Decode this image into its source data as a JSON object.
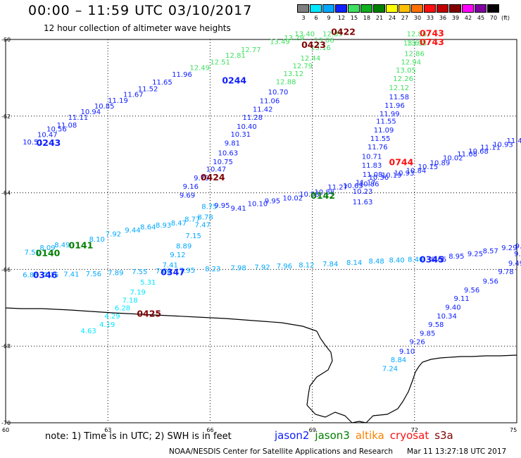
{
  "header": {
    "title": "00:00 – 11:59 UTC 03/10/2017",
    "subtitle": "12 hour collection of altimeter wave heights"
  },
  "scale": {
    "unit": "(ft)",
    "bins": [
      {
        "label": "3",
        "color": "#7f7f7f"
      },
      {
        "label": "6",
        "color": "#00e8ff"
      },
      {
        "label": "9",
        "color": "#00a8ff"
      },
      {
        "label": "12",
        "color": "#1020ff"
      },
      {
        "label": "15",
        "color": "#40e060"
      },
      {
        "label": "18",
        "color": "#10b020"
      },
      {
        "label": "21",
        "color": "#008000"
      },
      {
        "label": "24",
        "color": "#ffff00"
      },
      {
        "label": "27",
        "color": "#ffc000"
      },
      {
        "label": "30",
        "color": "#ff7000"
      },
      {
        "label": "33",
        "color": "#ff1010"
      },
      {
        "label": "36",
        "color": "#c00000"
      },
      {
        "label": "39",
        "color": "#800000"
      },
      {
        "label": "42",
        "color": "#ff00ff"
      },
      {
        "label": "45",
        "color": "#8000a0"
      },
      {
        "label": "70",
        "color": "#000000"
      }
    ]
  },
  "map": {
    "lat_ticks": [
      "-60",
      "-62",
      "-64",
      "-66",
      "-68",
      "-70"
    ],
    "lon_ticks": [
      "60",
      "63",
      "66",
      "69",
      "72",
      "75"
    ]
  },
  "tracks": [
    {
      "color": "#1020ff",
      "labels": [
        {
          "t": "10.51",
          "lon": 60.5,
          "lat": -62.74
        },
        {
          "t": "10.47",
          "lon": 60.93,
          "lat": -62.55
        },
        {
          "t": "10.56",
          "lon": 61.2,
          "lat": -62.4
        },
        {
          "t": "11.08",
          "lon": 61.5,
          "lat": -62.3
        },
        {
          "t": "11.11",
          "lon": 61.83,
          "lat": -62.1
        },
        {
          "t": "10.94",
          "lon": 62.2,
          "lat": -61.95
        },
        {
          "t": "10.85",
          "lon": 62.6,
          "lat": -61.8
        },
        {
          "t": "11.19",
          "lon": 63.0,
          "lat": -61.65
        },
        {
          "t": "11.67",
          "lon": 63.45,
          "lat": -61.5
        },
        {
          "t": "11.52",
          "lon": 63.88,
          "lat": -61.35
        },
        {
          "t": "11.65",
          "lon": 64.3,
          "lat": -61.18
        },
        {
          "t": "11.96",
          "lon": 64.88,
          "lat": -60.97
        }
      ]
    },
    {
      "color": "#40e060",
      "labels": [
        {
          "t": "12.49",
          "lon": 65.4,
          "lat": -60.8
        },
        {
          "t": "12.51",
          "lon": 66.0,
          "lat": -60.65
        },
        {
          "t": "12.81",
          "lon": 66.45,
          "lat": -60.48
        },
        {
          "t": "12.77",
          "lon": 66.9,
          "lat": -60.33
        },
        {
          "t": "13.49",
          "lon": 67.75,
          "lat": -60.12
        },
        {
          "t": "13.29",
          "lon": 68.17,
          "lat": -60.02
        },
        {
          "t": "13.40",
          "lon": 68.48,
          "lat": -59.92
        },
        {
          "t": "12.89",
          "lon": 69.3,
          "lat": -59.92
        },
        {
          "t": "13.06",
          "lon": 69.05,
          "lat": -60.08
        },
        {
          "t": "13.16",
          "lon": 68.95,
          "lat": -60.28
        },
        {
          "t": "12.44",
          "lon": 68.65,
          "lat": -60.55
        },
        {
          "t": "12.79",
          "lon": 68.42,
          "lat": -60.75
        },
        {
          "t": "13.12",
          "lon": 68.15,
          "lat": -60.96
        },
        {
          "t": "12.88",
          "lon": 67.93,
          "lat": -61.17
        },
        {
          "t": "12.86",
          "lon": 71.77,
          "lat": -59.92
        },
        {
          "t": "13.63",
          "lon": 71.67,
          "lat": -60.16
        },
        {
          "t": "13.93",
          "lon": 71.77,
          "lat": -60.16
        },
        {
          "t": "12.86",
          "lon": 71.7,
          "lat": -60.43
        },
        {
          "t": "12.94",
          "lon": 71.6,
          "lat": -60.65
        },
        {
          "t": "13.05",
          "lon": 71.45,
          "lat": -60.86
        },
        {
          "t": "12.26",
          "lon": 71.37,
          "lat": -61.08
        },
        {
          "t": "12.12",
          "lon": 71.25,
          "lat": -61.32
        }
      ]
    },
    {
      "color": "#1020ff",
      "labels": [
        {
          "t": "10.70",
          "lon": 67.7,
          "lat": -61.43
        },
        {
          "t": "11.06",
          "lon": 67.45,
          "lat": -61.66
        },
        {
          "t": "11.42",
          "lon": 67.25,
          "lat": -61.88
        },
        {
          "t": "11.28",
          "lon": 66.95,
          "lat": -62.1
        },
        {
          "t": "10.40",
          "lon": 66.78,
          "lat": -62.33
        },
        {
          "t": "10.31",
          "lon": 66.6,
          "lat": -62.54
        },
        {
          "t": "9.81",
          "lon": 66.42,
          "lat": -62.77
        },
        {
          "t": "10.63",
          "lon": 66.23,
          "lat": -63.02
        },
        {
          "t": "10.75",
          "lon": 66.08,
          "lat": -63.25
        },
        {
          "t": "10.47",
          "lon": 65.88,
          "lat": -63.45
        },
        {
          "t": "9.79",
          "lon": 65.52,
          "lat": -63.68
        },
        {
          "t": "9.16",
          "lon": 65.2,
          "lat": -63.9
        },
        {
          "t": "9.69",
          "lon": 65.1,
          "lat": -64.13
        },
        {
          "t": "11.58",
          "lon": 71.25,
          "lat": -61.56
        },
        {
          "t": "11.96",
          "lon": 71.12,
          "lat": -61.78
        },
        {
          "t": "11.99",
          "lon": 70.97,
          "lat": -62.0
        },
        {
          "t": "11.55",
          "lon": 70.87,
          "lat": -62.2
        },
        {
          "t": "11.09",
          "lon": 70.8,
          "lat": -62.43
        },
        {
          "t": "11.55",
          "lon": 70.7,
          "lat": -62.65
        },
        {
          "t": "11.76",
          "lon": 70.62,
          "lat": -62.87
        },
        {
          "t": "10.71",
          "lon": 70.45,
          "lat": -63.12
        },
        {
          "t": "11.83",
          "lon": 70.45,
          "lat": -63.35
        },
        {
          "t": "11.08",
          "lon": 70.47,
          "lat": -63.58
        },
        {
          "t": "10.86",
          "lon": 70.37,
          "lat": -63.83
        },
        {
          "t": "10.23",
          "lon": 70.18,
          "lat": -64.03
        },
        {
          "t": "11.63",
          "lon": 70.18,
          "lat": -64.3
        }
      ]
    },
    {
      "color": "#1020ff",
      "labels": [
        {
          "t": "9.95",
          "lon": 66.12,
          "lat": -64.39
        },
        {
          "t": "9.41",
          "lon": 66.6,
          "lat": -64.47
        },
        {
          "t": "10.10",
          "lon": 67.1,
          "lat": -64.35
        },
        {
          "t": "9.95",
          "lon": 67.6,
          "lat": -64.27
        },
        {
          "t": "10.02",
          "lon": 68.13,
          "lat": -64.2
        },
        {
          "t": "10.53",
          "lon": 68.62,
          "lat": -64.1
        },
        {
          "t": "10.88",
          "lon": 69.06,
          "lat": -64.04
        },
        {
          "t": "11.27",
          "lon": 69.45,
          "lat": -63.92
        },
        {
          "t": "10.65",
          "lon": 69.9,
          "lat": -63.88
        },
        {
          "t": "11.17",
          "lon": 70.27,
          "lat": -63.8
        },
        {
          "t": "10.36",
          "lon": 70.65,
          "lat": -63.66
        },
        {
          "t": "10.19",
          "lon": 71.03,
          "lat": -63.6
        },
        {
          "t": "10.93",
          "lon": 71.4,
          "lat": -63.55
        },
        {
          "t": "10.84",
          "lon": 71.75,
          "lat": -63.48
        },
        {
          "t": "10.15",
          "lon": 72.1,
          "lat": -63.38
        },
        {
          "t": "10.89",
          "lon": 72.45,
          "lat": -63.28
        },
        {
          "t": "10.02",
          "lon": 72.83,
          "lat": -63.15
        },
        {
          "t": "11.08",
          "lon": 73.25,
          "lat": -63.05
        },
        {
          "t": "10.68",
          "lon": 73.58,
          "lat": -62.98
        },
        {
          "t": "11.11",
          "lon": 73.93,
          "lat": -62.88
        },
        {
          "t": "10.93",
          "lon": 74.3,
          "lat": -62.8
        },
        {
          "t": "11.41",
          "lon": 74.7,
          "lat": -62.7
        }
      ]
    },
    {
      "color": "#00a8ff",
      "labels": [
        {
          "t": "7.51",
          "lon": 60.55,
          "lat": -65.62
        },
        {
          "t": "8.09",
          "lon": 61.0,
          "lat": -65.5
        },
        {
          "t": "8.49",
          "lon": 61.43,
          "lat": -65.42
        },
        {
          "t": "8.10",
          "lon": 62.45,
          "lat": -65.28
        },
        {
          "t": "7.92",
          "lon": 62.93,
          "lat": -65.14
        },
        {
          "t": "9.44",
          "lon": 63.5,
          "lat": -65.04
        },
        {
          "t": "8.64",
          "lon": 63.95,
          "lat": -64.95
        },
        {
          "t": "8.93",
          "lon": 64.4,
          "lat": -64.91
        },
        {
          "t": "8.47",
          "lon": 64.85,
          "lat": -64.85
        },
        {
          "t": "8.77",
          "lon": 65.25,
          "lat": -64.75
        },
        {
          "t": "8.78",
          "lon": 65.63,
          "lat": -64.7
        },
        {
          "t": "8.75",
          "lon": 65.75,
          "lat": -64.42
        },
        {
          "t": "7.47",
          "lon": 65.55,
          "lat": -64.9
        },
        {
          "t": "7.15",
          "lon": 65.28,
          "lat": -65.18
        },
        {
          "t": "8.89",
          "lon": 65.0,
          "lat": -65.45
        },
        {
          "t": "9.12",
          "lon": 64.82,
          "lat": -65.68
        },
        {
          "t": "7.41",
          "lon": 64.6,
          "lat": -65.95
        }
      ]
    },
    {
      "color": "#00e8ff",
      "labels": [
        {
          "t": "5.31",
          "lon": 63.95,
          "lat": -66.4
        },
        {
          "t": "7.19",
          "lon": 63.65,
          "lat": -66.65
        },
        {
          "t": "7.18",
          "lon": 63.42,
          "lat": -66.87
        },
        {
          "t": "6.28",
          "lon": 63.2,
          "lat": -67.07
        },
        {
          "t": "4.29",
          "lon": 62.9,
          "lat": -67.28
        },
        {
          "t": "4.19",
          "lon": 62.75,
          "lat": -67.5
        },
        {
          "t": "4.63",
          "lon": 62.2,
          "lat": -67.67
        }
      ]
    },
    {
      "color": "#00a8ff",
      "labels": [
        {
          "t": "6.86",
          "lon": 60.5,
          "lat": -66.2
        },
        {
          "t": "7.15",
          "lon": 61.1,
          "lat": -66.2
        },
        {
          "t": "7.41",
          "lon": 61.7,
          "lat": -66.19
        },
        {
          "t": "7.56",
          "lon": 62.35,
          "lat": -66.18
        },
        {
          "t": "7.89",
          "lon": 63.0,
          "lat": -66.15
        },
        {
          "t": "7.55",
          "lon": 63.7,
          "lat": -66.12
        },
        {
          "t": "7.66",
          "lon": 64.4,
          "lat": -66.1
        },
        {
          "t": "7.95",
          "lon": 65.1,
          "lat": -66.08
        },
        {
          "t": "8.23",
          "lon": 65.85,
          "lat": -66.05
        },
        {
          "t": "7.98",
          "lon": 66.6,
          "lat": -66.02
        },
        {
          "t": "7.92",
          "lon": 67.3,
          "lat": -66.0
        },
        {
          "t": "7.96",
          "lon": 67.95,
          "lat": -65.97
        },
        {
          "t": "8.12",
          "lon": 68.6,
          "lat": -65.95
        },
        {
          "t": "7.84",
          "lon": 69.3,
          "lat": -65.92
        },
        {
          "t": "8.14",
          "lon": 70.0,
          "lat": -65.88
        },
        {
          "t": "8.48",
          "lon": 70.65,
          "lat": -65.85
        },
        {
          "t": "8.40",
          "lon": 71.25,
          "lat": -65.82
        },
        {
          "t": "8.40",
          "lon": 71.8,
          "lat": -65.8
        }
      ]
    },
    {
      "color": "#1020ff",
      "labels": [
        {
          "t": "8.65",
          "lon": 72.48,
          "lat": -65.8
        },
        {
          "t": "8.95",
          "lon": 73.0,
          "lat": -65.72
        },
        {
          "t": "9.25",
          "lon": 73.55,
          "lat": -65.65
        },
        {
          "t": "8.57",
          "lon": 74.0,
          "lat": -65.58
        },
        {
          "t": "9.29",
          "lon": 74.55,
          "lat": -65.5
        },
        {
          "t": "9.09",
          "lon": 74.95,
          "lat": -65.45
        },
        {
          "t": "9.8",
          "lon": 74.92,
          "lat": -65.65
        },
        {
          "t": "9.49",
          "lon": 74.75,
          "lat": -65.9
        },
        {
          "t": "9.78",
          "lon": 74.45,
          "lat": -66.12
        },
        {
          "t": "9.56",
          "lon": 74.0,
          "lat": -66.37
        },
        {
          "t": "9.56",
          "lon": 73.45,
          "lat": -66.6
        },
        {
          "t": "9.11",
          "lon": 73.15,
          "lat": -66.82
        },
        {
          "t": "9.40",
          "lon": 72.9,
          "lat": -67.05
        },
        {
          "t": "10.34",
          "lon": 72.65,
          "lat": -67.28
        },
        {
          "t": "9.58",
          "lon": 72.4,
          "lat": -67.5
        },
        {
          "t": "9.85",
          "lon": 72.15,
          "lat": -67.73
        },
        {
          "t": "9.26",
          "lon": 71.85,
          "lat": -67.95
        },
        {
          "t": "9.10",
          "lon": 71.55,
          "lat": -68.2
        }
      ]
    },
    {
      "color": "#00a8ff",
      "labels": [
        {
          "t": "8.84",
          "lon": 71.3,
          "lat": -68.42
        },
        {
          "t": "7.24",
          "lon": 71.05,
          "lat": -68.65
        }
      ]
    }
  ],
  "times": [
    {
      "t": "0243",
      "lon": 60.9,
      "lat": -62.78,
      "color": "#1020ff"
    },
    {
      "t": "0244",
      "lon": 66.35,
      "lat": -61.15,
      "color": "#1020ff"
    },
    {
      "t": "0422",
      "lon": 69.55,
      "lat": -59.88,
      "color": "#800000"
    },
    {
      "t": "0423",
      "lon": 68.68,
      "lat": -60.22,
      "color": "#800000"
    },
    {
      "t": "0743",
      "lon": 72.15,
      "lat": -59.92,
      "color": "#ff1010"
    },
    {
      "t": "0743",
      "lon": 72.15,
      "lat": -60.15,
      "color": "#ff1010"
    },
    {
      "t": "0424",
      "lon": 65.72,
      "lat": -63.68,
      "color": "#800000"
    },
    {
      "t": "0744",
      "lon": 71.25,
      "lat": -63.28,
      "color": "#ff1010"
    },
    {
      "t": "0142",
      "lon": 68.95,
      "lat": -64.15,
      "color": "#008000"
    },
    {
      "t": "0140",
      "lon": 60.88,
      "lat": -65.65,
      "color": "#008000"
    },
    {
      "t": "0141",
      "lon": 61.85,
      "lat": -65.45,
      "color": "#008000"
    },
    {
      "t": "0346",
      "lon": 60.8,
      "lat": -66.22,
      "color": "#1020ff"
    },
    {
      "t": "0347",
      "lon": 64.55,
      "lat": -66.15,
      "color": "#1020ff"
    },
    {
      "t": "0345",
      "lon": 72.15,
      "lat": -65.82,
      "color": "#1020ff"
    },
    {
      "t": "0425",
      "lon": 63.85,
      "lat": -67.23,
      "color": "#800000"
    }
  ],
  "footer": {
    "note": "note:  1) Time is in UTC;  2) SWH is in feet",
    "legend": [
      {
        "label": "jason2",
        "color": "#1020ff"
      },
      {
        "label": "jason3",
        "color": "#008000"
      },
      {
        "label": "altika",
        "color": "#ff8000"
      },
      {
        "label": "cryosat",
        "color": "#ff1010"
      },
      {
        "label": "s3a",
        "color": "#800000"
      }
    ],
    "credit": "NOAA/NESDIS Center for Satellite Applications and Research",
    "timestamp": "Mar 11 13:27:18 UTC 2017"
  }
}
